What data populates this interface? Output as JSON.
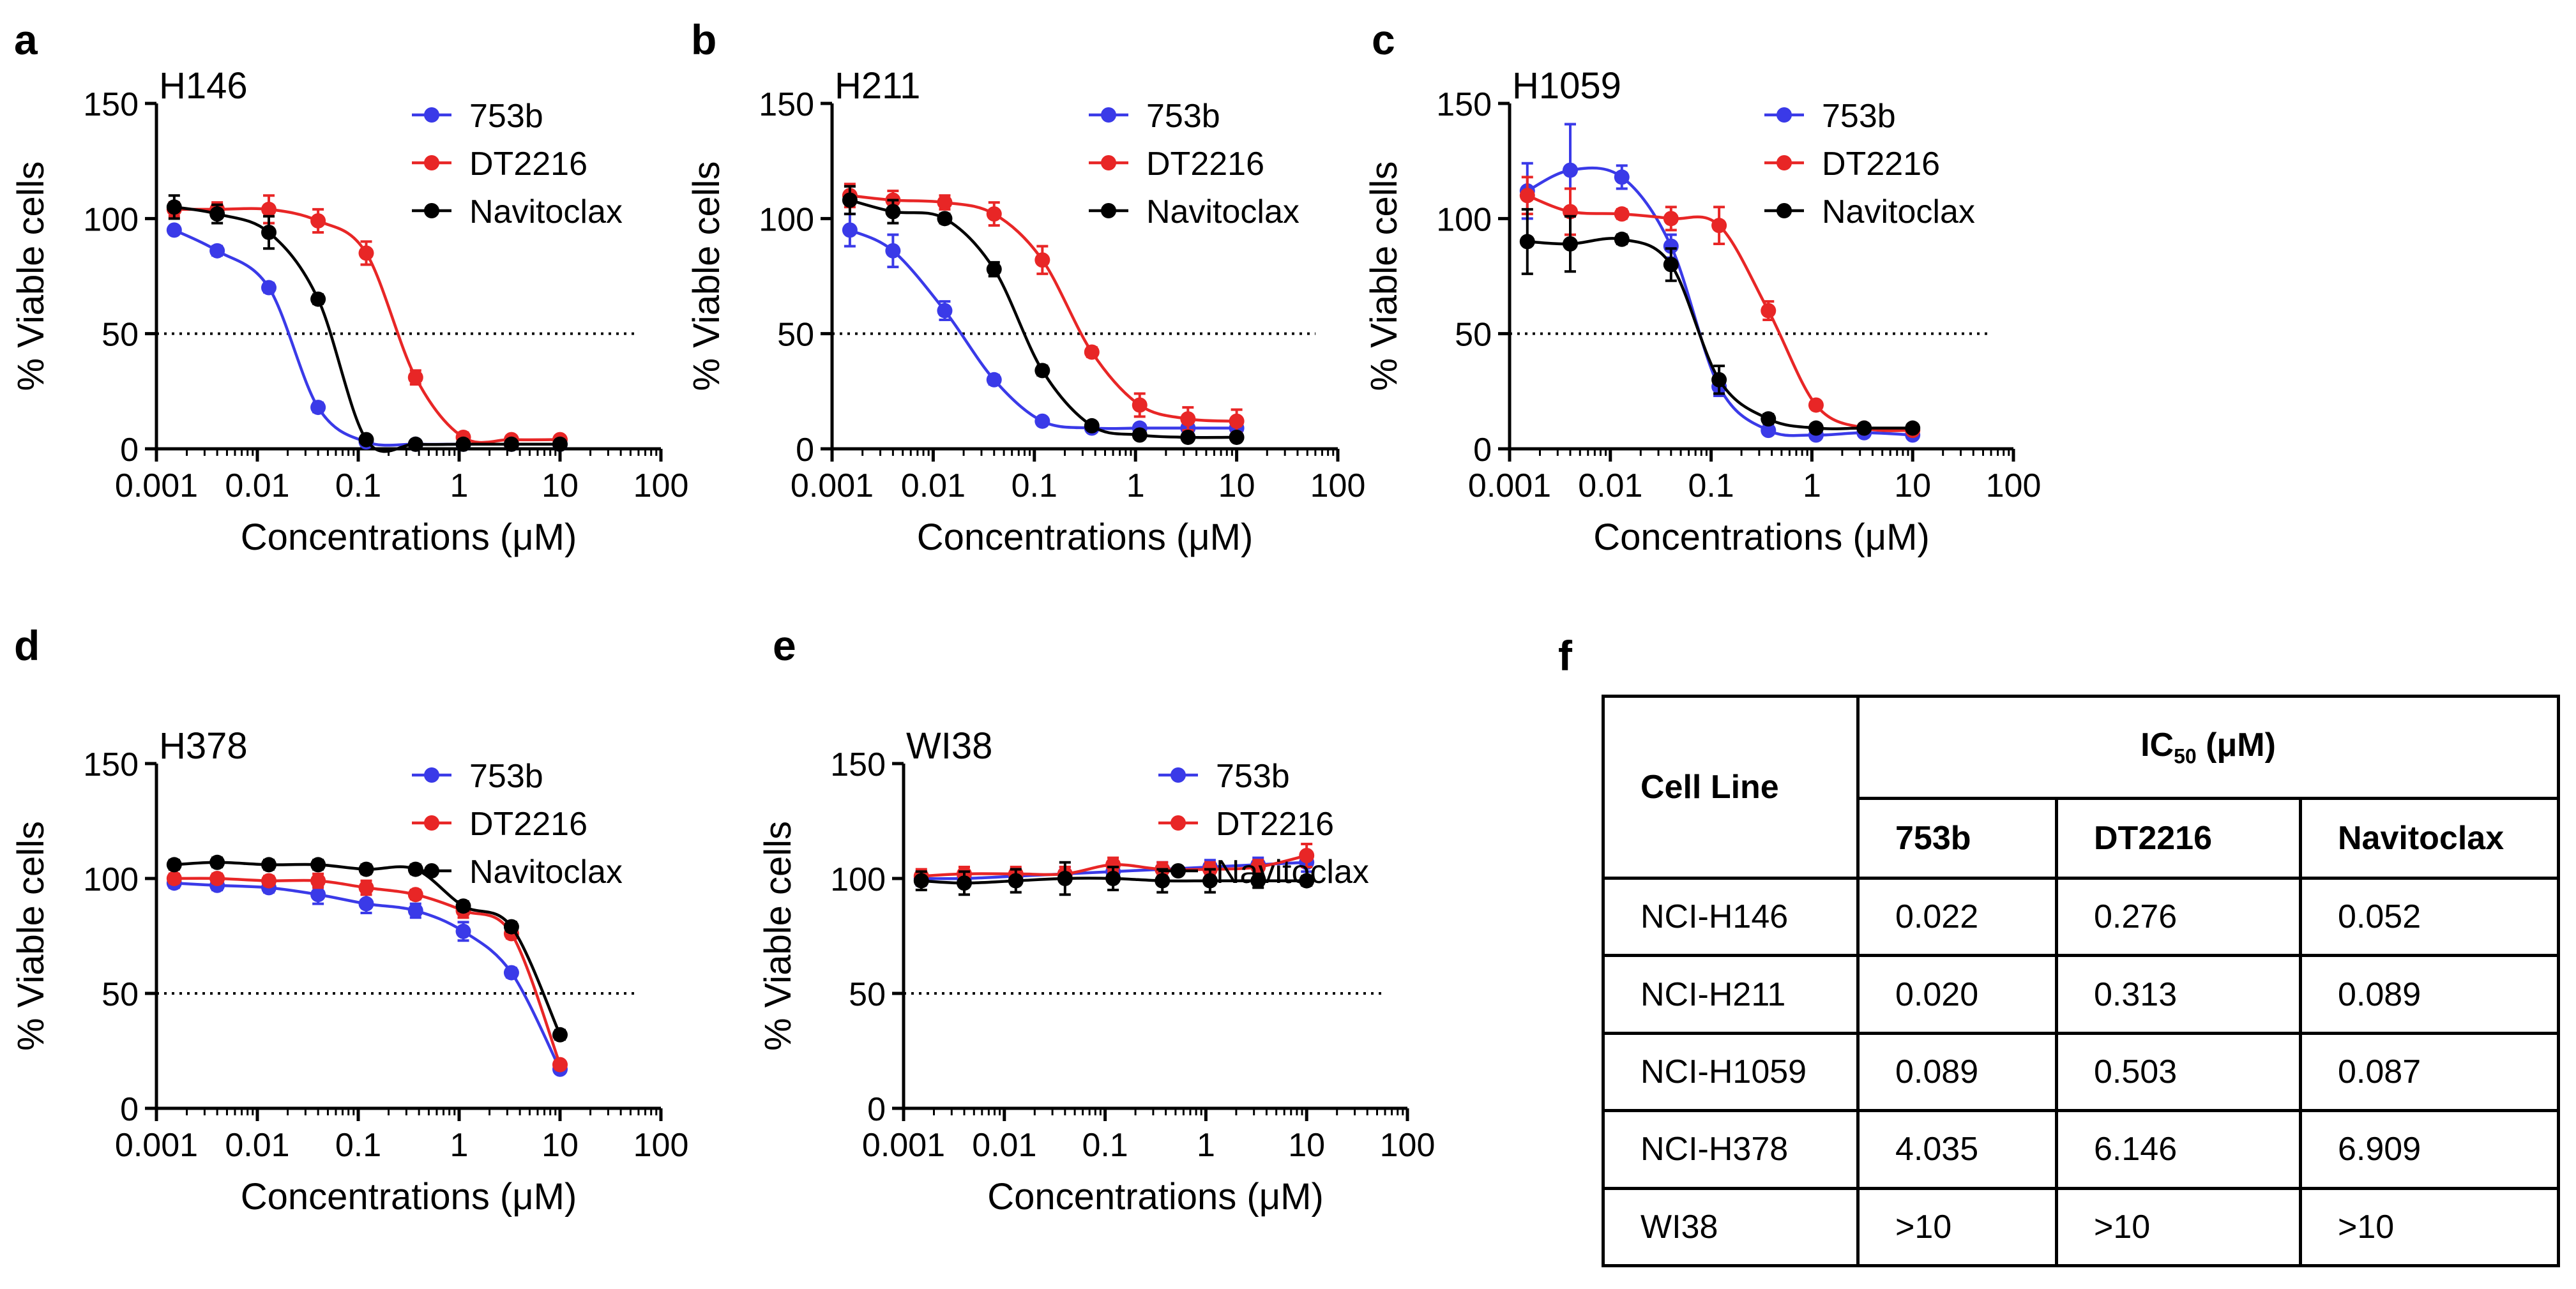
{
  "legend": {
    "s753b": "753b",
    "sDT2216": "DT2216",
    "sNav": "Navitoclax"
  },
  "colors": {
    "753b": "#3a3ae8",
    "DT2216": "#e82626",
    "Navitoclax": "#000000"
  },
  "chart_data": [
    {
      "panel": "a",
      "type": "scatter",
      "title": "H146",
      "xlabel": "Concentrations (μM)",
      "ylabel": "% Viable cells",
      "xscale": "log",
      "xlim": [
        0.001,
        100
      ],
      "ylim": [
        0,
        150
      ],
      "xticks": [
        "0.001",
        "0.01",
        "0.1",
        "1",
        "10",
        "100"
      ],
      "yticks": [
        "0",
        "50",
        "100",
        "150"
      ],
      "reference_line_y": 50,
      "legend_position": "top-right",
      "x": [
        0.0015,
        0.004,
        0.013,
        0.04,
        0.12,
        0.37,
        1.1,
        3.3,
        10
      ],
      "series": [
        {
          "name": "753b",
          "values": [
            95,
            86,
            70,
            18,
            3,
            2,
            2,
            2,
            2
          ],
          "errors": [
            1,
            2,
            2,
            2,
            1,
            1,
            1,
            1,
            1
          ]
        },
        {
          "name": "DT2216",
          "values": [
            104,
            104,
            104,
            99,
            85,
            31,
            5,
            4,
            4
          ],
          "errors": [
            3,
            3,
            6,
            5,
            5,
            3,
            2,
            1,
            1
          ]
        },
        {
          "name": "Navitoclax",
          "values": [
            105,
            102,
            94,
            65,
            4,
            2,
            2,
            2,
            2
          ],
          "errors": [
            5,
            4,
            7,
            2,
            1,
            1,
            1,
            1,
            1
          ]
        }
      ]
    },
    {
      "panel": "b",
      "type": "scatter",
      "title": "H211",
      "xlabel": "Concentrations (μM)",
      "ylabel": "% Viable cells",
      "xscale": "log",
      "xlim": [
        0.001,
        100
      ],
      "ylim": [
        0,
        150
      ],
      "xticks": [
        "0.001",
        "0.01",
        "0.1",
        "1",
        "10",
        "100"
      ],
      "yticks": [
        "0",
        "50",
        "100",
        "150"
      ],
      "reference_line_y": 50,
      "legend_position": "top-right",
      "x": [
        0.0015,
        0.004,
        0.013,
        0.04,
        0.12,
        0.37,
        1.1,
        3.3,
        10
      ],
      "series": [
        {
          "name": "753b",
          "values": [
            95,
            86,
            60,
            30,
            12,
            9,
            9,
            9,
            9
          ],
          "errors": [
            7,
            7,
            4,
            2,
            1,
            1,
            1,
            1,
            1
          ]
        },
        {
          "name": "DT2216",
          "values": [
            110,
            108,
            107,
            102,
            82,
            42,
            19,
            13,
            12
          ],
          "errors": [
            5,
            4,
            3,
            5,
            6,
            2,
            5,
            5,
            5
          ]
        },
        {
          "name": "Navitoclax",
          "values": [
            108,
            103,
            100,
            78,
            34,
            10,
            6,
            5,
            5
          ],
          "errors": [
            6,
            5,
            2,
            3,
            2,
            1,
            1,
            1,
            1
          ]
        }
      ]
    },
    {
      "panel": "c",
      "type": "scatter",
      "title": "H1059",
      "xlabel": "Concentrations (μM)",
      "ylabel": "% Viable cells",
      "xscale": "log",
      "xlim": [
        0.001,
        100
      ],
      "ylim": [
        0,
        150
      ],
      "xticks": [
        "0.001",
        "0.01",
        "0.1",
        "1",
        "10",
        "100"
      ],
      "yticks": [
        "0",
        "50",
        "100",
        "150"
      ],
      "reference_line_y": 50,
      "legend_position": "top-right",
      "x": [
        0.0015,
        0.004,
        0.013,
        0.04,
        0.12,
        0.37,
        1.1,
        3.3,
        10
      ],
      "series": [
        {
          "name": "753b",
          "values": [
            112,
            121,
            118,
            88,
            27,
            8,
            6,
            7,
            6
          ],
          "errors": [
            12,
            20,
            5,
            5,
            4,
            1,
            1,
            1,
            1
          ]
        },
        {
          "name": "DT2216",
          "values": [
            110,
            103,
            102,
            100,
            97,
            60,
            19,
            9,
            8
          ],
          "errors": [
            8,
            10,
            2,
            5,
            8,
            4,
            1,
            1,
            1
          ]
        },
        {
          "name": "Navitoclax",
          "values": [
            90,
            89,
            91,
            80,
            30,
            13,
            9,
            9,
            9
          ],
          "errors": [
            14,
            12,
            2,
            7,
            6,
            2,
            1,
            1,
            1
          ]
        }
      ]
    },
    {
      "panel": "d",
      "type": "scatter",
      "title": "H378",
      "xlabel": "Concentrations (μM)",
      "ylabel": "% Viable cells",
      "xscale": "log",
      "xlim": [
        0.001,
        100
      ],
      "ylim": [
        0,
        150
      ],
      "xticks": [
        "0.001",
        "0.01",
        "0.1",
        "1",
        "10",
        "100"
      ],
      "yticks": [
        "0",
        "50",
        "100",
        "150"
      ],
      "reference_line_y": 50,
      "legend_position": "top-right",
      "x": [
        0.0015,
        0.004,
        0.013,
        0.04,
        0.12,
        0.37,
        1.1,
        3.3,
        10
      ],
      "series": [
        {
          "name": "753b",
          "values": [
            98,
            97,
            96,
            93,
            89,
            86,
            77,
            59,
            17
          ],
          "errors": [
            2,
            2,
            2,
            4,
            4,
            3,
            4,
            2,
            1
          ]
        },
        {
          "name": "DT2216",
          "values": [
            100,
            100,
            99,
            99,
            96,
            93,
            86,
            76,
            19
          ],
          "errors": [
            2,
            2,
            2,
            3,
            3,
            2,
            3,
            2,
            1
          ]
        },
        {
          "name": "Navitoclax",
          "values": [
            106,
            107,
            106,
            106,
            104,
            104,
            88,
            79,
            32
          ],
          "errors": [
            2,
            2,
            2,
            2,
            2,
            2,
            2,
            2,
            2
          ]
        }
      ]
    },
    {
      "panel": "e",
      "type": "scatter",
      "title": "WI38",
      "xlabel": "Concentrations (μM)",
      "ylabel": "% Viable cells",
      "xscale": "log",
      "xlim": [
        0.001,
        100
      ],
      "ylim": [
        0,
        150
      ],
      "xticks": [
        "0.001",
        "0.01",
        "0.1",
        "1",
        "10",
        "100"
      ],
      "yticks": [
        "0",
        "50",
        "100",
        "150"
      ],
      "reference_line_y": 50,
      "legend_position": "top-right",
      "x": [
        0.0015,
        0.004,
        0.013,
        0.04,
        0.12,
        0.37,
        1.1,
        3.3,
        10
      ],
      "series": [
        {
          "name": "753b",
          "values": [
            100,
            100,
            101,
            102,
            103,
            104,
            105,
            106,
            107
          ],
          "errors": [
            3,
            3,
            3,
            3,
            3,
            3,
            3,
            3,
            4
          ]
        },
        {
          "name": "DT2216",
          "values": [
            101,
            102,
            102,
            102,
            106,
            104,
            104,
            105,
            110
          ],
          "errors": [
            3,
            3,
            3,
            3,
            3,
            3,
            3,
            3,
            5
          ]
        },
        {
          "name": "Navitoclax",
          "values": [
            99,
            98,
            99,
            100,
            100,
            99,
            99,
            99,
            99
          ],
          "errors": [
            4,
            5,
            5,
            7,
            5,
            5,
            5,
            3,
            2
          ]
        }
      ]
    }
  ],
  "ic50_table": {
    "panel": "f",
    "col_cell_line": "Cell Line",
    "header_ic": "IC",
    "header_ic_sub": "50",
    "header_ic_unit": " (μM)",
    "col_753b": "753b",
    "col_DT2216": "DT2216",
    "col_nav": "Navitoclax",
    "rows": [
      [
        "NCI-H146",
        "0.022",
        "0.276",
        "0.052"
      ],
      [
        "NCI-H211",
        "0.020",
        "0.313",
        "0.089"
      ],
      [
        "NCI-H1059",
        "0.089",
        "0.503",
        "0.087"
      ],
      [
        "NCI-H378",
        "4.035",
        "6.146",
        "6.909"
      ],
      [
        "WI38",
        ">10",
        ">10",
        ">10"
      ]
    ]
  }
}
